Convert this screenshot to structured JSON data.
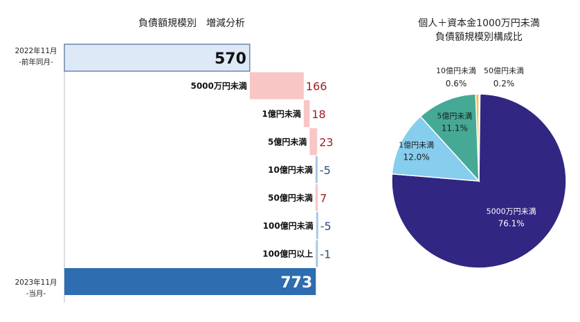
{
  "chart_data": [
    {
      "type": "bar",
      "title": "負債額規模別　増減分析",
      "start": {
        "label_line1": "2022年11月",
        "label_line2": "-前年同月-",
        "value": 570
      },
      "end": {
        "label_line1": "2023年11月",
        "label_line2": "-当月-",
        "value": 773
      },
      "categories": [
        "5000万円未満",
        "1億円未満",
        "5億円未満",
        "10億円未満",
        "50億円未満",
        "100億円未満",
        "100億円以上"
      ],
      "values": [
        166,
        18,
        23,
        -5,
        7,
        -5,
        -1
      ],
      "value_labels": [
        "166",
        "18",
        "23",
        "-5",
        "7",
        "-5",
        "-1"
      ],
      "colors": {
        "increase": "#f9c6c6",
        "decrease": "#a9c6e6",
        "start": "#dde9f6",
        "end": "#2e6db0",
        "increase_text": "#a01d1d",
        "decrease_text": "#2b4f7e"
      }
    },
    {
      "type": "pie",
      "title_line1": "個人＋資本金1000万円未満",
      "title_line2": "負債額規模別構成比",
      "slices": [
        {
          "label": "5000万円未満",
          "value": 76.1,
          "value_label": "76.1%",
          "color": "#312682"
        },
        {
          "label": "1億円未満",
          "value": 12.0,
          "value_label": "12.0%",
          "color": "#86cdee"
        },
        {
          "label": "5億円未満",
          "value": 11.1,
          "value_label": "11.1%",
          "color": "#45a995"
        },
        {
          "label": "10億円未満",
          "value": 0.6,
          "value_label": "0.6%",
          "color": "#f2c14e"
        },
        {
          "label": "50億円未満",
          "value": 0.2,
          "value_label": "0.2%",
          "color": "#e3b23c"
        }
      ]
    }
  ]
}
